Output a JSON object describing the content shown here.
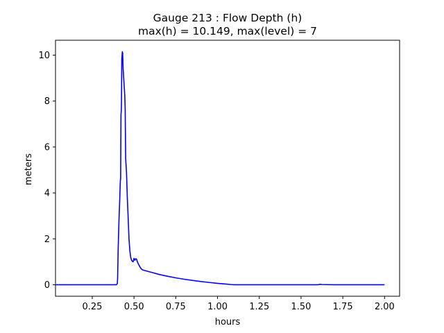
{
  "chart_data": {
    "type": "line",
    "title_line1": "Gauge 213 : Flow Depth (h)",
    "title_line2": "max(h) =  10.149,    max(level) = 7",
    "xlabel": "hours",
    "ylabel": "meters",
    "xlim": [
      0.03,
      2.09
    ],
    "ylim": [
      -0.5,
      10.65
    ],
    "x_ticks": [
      0.25,
      0.5,
      0.75,
      1.0,
      1.25,
      1.5,
      1.75,
      2.0
    ],
    "x_tick_labels": [
      "0.25",
      "0.50",
      "0.75",
      "1.00",
      "1.25",
      "1.50",
      "1.75",
      "2.00"
    ],
    "y_ticks": [
      0,
      2,
      4,
      6,
      8,
      10
    ],
    "y_tick_labels": [
      "0",
      "2",
      "4",
      "6",
      "8",
      "10"
    ],
    "grid": false,
    "line_color": "#0000ff",
    "series": [
      {
        "x": [
          0.03,
          0.1,
          0.2,
          0.3,
          0.395,
          0.4,
          0.402,
          0.405,
          0.41,
          0.415,
          0.417,
          0.419,
          0.42,
          0.422,
          0.424,
          0.425,
          0.427,
          0.43,
          0.432,
          0.435,
          0.44,
          0.445,
          0.447,
          0.45,
          0.455,
          0.46,
          0.465,
          0.47,
          0.475,
          0.48,
          0.485,
          0.49,
          0.495,
          0.5,
          0.505,
          0.51,
          0.515,
          0.52,
          0.53,
          0.54,
          0.55,
          0.56,
          0.6,
          0.65,
          0.7,
          0.75,
          0.8,
          0.85,
          0.9,
          0.95,
          1.0,
          1.05,
          1.08,
          1.1,
          1.2,
          1.3,
          1.4,
          1.5,
          1.6,
          1.615,
          1.625,
          1.7,
          1.8,
          1.9,
          2.0
        ],
        "y": [
          0.0,
          0.0,
          0.0,
          0.0,
          0.0,
          0.05,
          0.3,
          1.5,
          2.8,
          3.8,
          4.3,
          4.6,
          4.6,
          7.4,
          7.6,
          8.0,
          9.8,
          10.15,
          10.1,
          9.4,
          8.8,
          8.2,
          7.7,
          5.5,
          4.9,
          3.8,
          2.9,
          2.0,
          1.5,
          1.2,
          1.08,
          1.02,
          1.0,
          1.15,
          1.07,
          1.13,
          1.12,
          1.0,
          0.85,
          0.72,
          0.65,
          0.63,
          0.55,
          0.45,
          0.37,
          0.3,
          0.24,
          0.19,
          0.14,
          0.1,
          0.06,
          0.03,
          0.01,
          0.0,
          0.0,
          0.0,
          0.0,
          0.0,
          0.0,
          0.02,
          0.01,
          0.0,
          0.0,
          0.0,
          0.0
        ]
      }
    ]
  }
}
